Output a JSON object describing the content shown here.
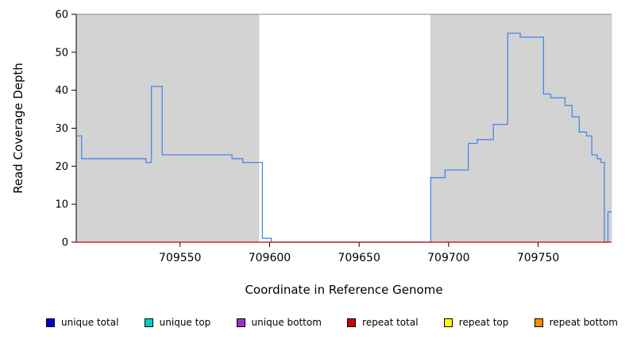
{
  "chart_data": {
    "type": "line",
    "title": "",
    "xlabel": "Coordinate in Reference Genome",
    "ylabel": "Read Coverage Depth",
    "x_range": [
      709492,
      709791
    ],
    "ylim": [
      0,
      60
    ],
    "x_ticks": [
      709550,
      709600,
      709650,
      709700,
      709750
    ],
    "y_ticks": [
      0,
      10,
      20,
      30,
      40,
      50,
      60
    ],
    "grid": false,
    "legend_position": "bottom",
    "shading_color": "#d3d3d3",
    "shaded_regions": [
      {
        "start": 709492,
        "end": 709594
      },
      {
        "start": 709690,
        "end": 709791
      }
    ],
    "series": [
      {
        "name": "unique total",
        "color": "#4a86e8",
        "step_points": [
          {
            "x": 709492,
            "y": 28
          },
          {
            "x": 709495,
            "y": 22
          },
          {
            "x": 709531,
            "y": 21
          },
          {
            "x": 709534,
            "y": 41
          },
          {
            "x": 709540,
            "y": 23
          },
          {
            "x": 709579,
            "y": 22
          },
          {
            "x": 709585,
            "y": 21
          },
          {
            "x": 709596,
            "y": 1
          },
          {
            "x": 709601,
            "y": 0
          },
          {
            "x": 709690,
            "y": 17
          },
          {
            "x": 709698,
            "y": 19
          },
          {
            "x": 709711,
            "y": 26
          },
          {
            "x": 709716,
            "y": 27
          },
          {
            "x": 709725,
            "y": 31
          },
          {
            "x": 709733,
            "y": 55
          },
          {
            "x": 709740,
            "y": 54
          },
          {
            "x": 709753,
            "y": 39
          },
          {
            "x": 709757,
            "y": 38
          },
          {
            "x": 709765,
            "y": 36
          },
          {
            "x": 709769,
            "y": 33
          },
          {
            "x": 709773,
            "y": 29
          },
          {
            "x": 709777,
            "y": 28
          },
          {
            "x": 709780,
            "y": 23
          },
          {
            "x": 709783,
            "y": 22
          },
          {
            "x": 709785,
            "y": 21
          },
          {
            "x": 709787,
            "y": 0
          },
          {
            "x": 709789,
            "y": 8
          }
        ]
      },
      {
        "name": "repeat total",
        "color": "#cc0000",
        "step_points": [
          {
            "x": 709492,
            "y": 0
          }
        ]
      }
    ],
    "legend": [
      {
        "label": "unique total",
        "color": "#0000cd"
      },
      {
        "label": "unique top",
        "color": "#00cdcd"
      },
      {
        "label": "unique bottom",
        "color": "#9932cc"
      },
      {
        "label": "repeat total",
        "color": "#cd0000"
      },
      {
        "label": "repeat top",
        "color": "#ffff00"
      },
      {
        "label": "repeat bottom",
        "color": "#ff8c00"
      }
    ]
  }
}
